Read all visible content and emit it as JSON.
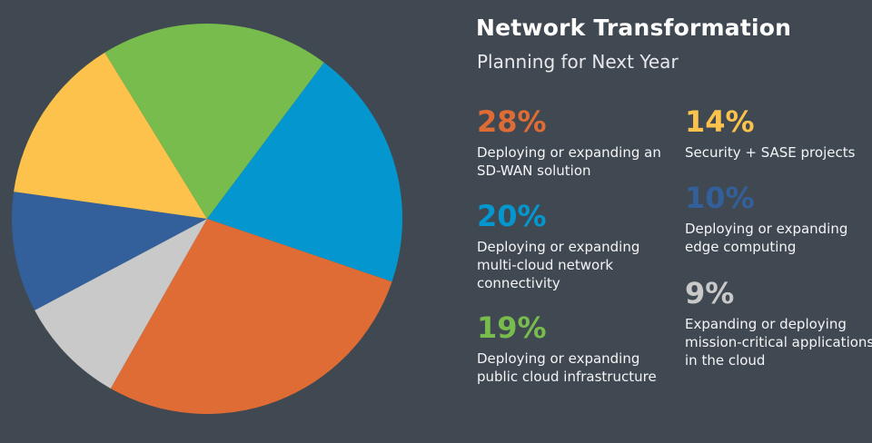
{
  "header": {
    "title": "Network Transformation",
    "subtitle": "Planning for Next Year"
  },
  "stats": [
    {
      "value": "28%",
      "label": "Deploying or expanding an SD-WAN solution"
    },
    {
      "value": "14%",
      "label": "Security + SASE projects"
    },
    {
      "value": "20%",
      "label": "Deploying or expanding multi-cloud network connectivity"
    },
    {
      "value": "10%",
      "label": "Deploying or expanding edge computing"
    },
    {
      "value": "19%",
      "label": "Deploying or expanding public cloud infrastructure"
    },
    {
      "value": "9%",
      "label": "Expanding or deploying mission-critical applications in the cloud"
    }
  ],
  "chart_data": {
    "type": "pie",
    "slices": [
      {
        "label": "Deploying or expanding edge computing",
        "value": 10,
        "color": "#335f9a"
      },
      {
        "label": "Security + SASE projects",
        "value": 14,
        "color": "#fcc24b"
      },
      {
        "label": "Deploying or expanding public cloud infrastructure",
        "value": 19,
        "color": "#77bc4c"
      },
      {
        "label": "Deploying or expanding multi-cloud network connectivity",
        "value": 20,
        "color": "#0496ce"
      },
      {
        "label": "Deploying or expanding an SD-WAN solution",
        "value": 28,
        "color": "#e06c35"
      },
      {
        "label": "Expanding or deploying mission-critical applications in the cloud",
        "value": 9,
        "color": "#c9c9c9"
      }
    ]
  },
  "colors": {
    "background": "#404952",
    "orange": "#e06c35",
    "yellow": "#fcc24b",
    "blue": "#0496ce",
    "dark_blue": "#335f9a",
    "green": "#77bc4c",
    "gray": "#c9c9c9"
  }
}
